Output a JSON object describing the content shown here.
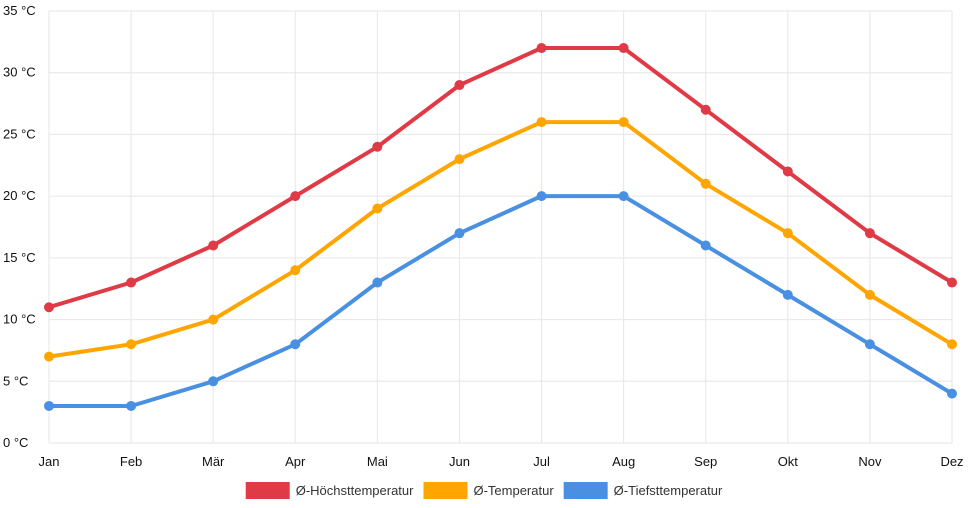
{
  "chart_data": {
    "type": "line",
    "categories": [
      "Jan",
      "Feb",
      "Mär",
      "Apr",
      "Mai",
      "Jun",
      "Jul",
      "Aug",
      "Sep",
      "Okt",
      "Nov",
      "Dez"
    ],
    "y_ticks": [
      "0 °C",
      "5 °C",
      "10 °C",
      "15 °C",
      "20 °C",
      "25 °C",
      "30 °C",
      "35 °C"
    ],
    "ylim": [
      0,
      35
    ],
    "grid": true,
    "legend_position": "bottom",
    "series": [
      {
        "name": "Ø-Höchsttemperatur",
        "color": "#e03a47",
        "values": [
          11,
          13,
          16,
          20,
          24,
          29,
          32,
          32,
          27,
          22,
          17,
          13
        ]
      },
      {
        "name": "Ø-Temperatur",
        "color": "#ffa500",
        "values": [
          7,
          8,
          10,
          14,
          19,
          23,
          26,
          26,
          21,
          17,
          12,
          8
        ]
      },
      {
        "name": "Ø-Tiefsttemperatur",
        "color": "#4a90e2",
        "values": [
          3,
          3,
          5,
          8,
          13,
          17,
          20,
          20,
          16,
          12,
          8,
          4
        ]
      }
    ]
  }
}
